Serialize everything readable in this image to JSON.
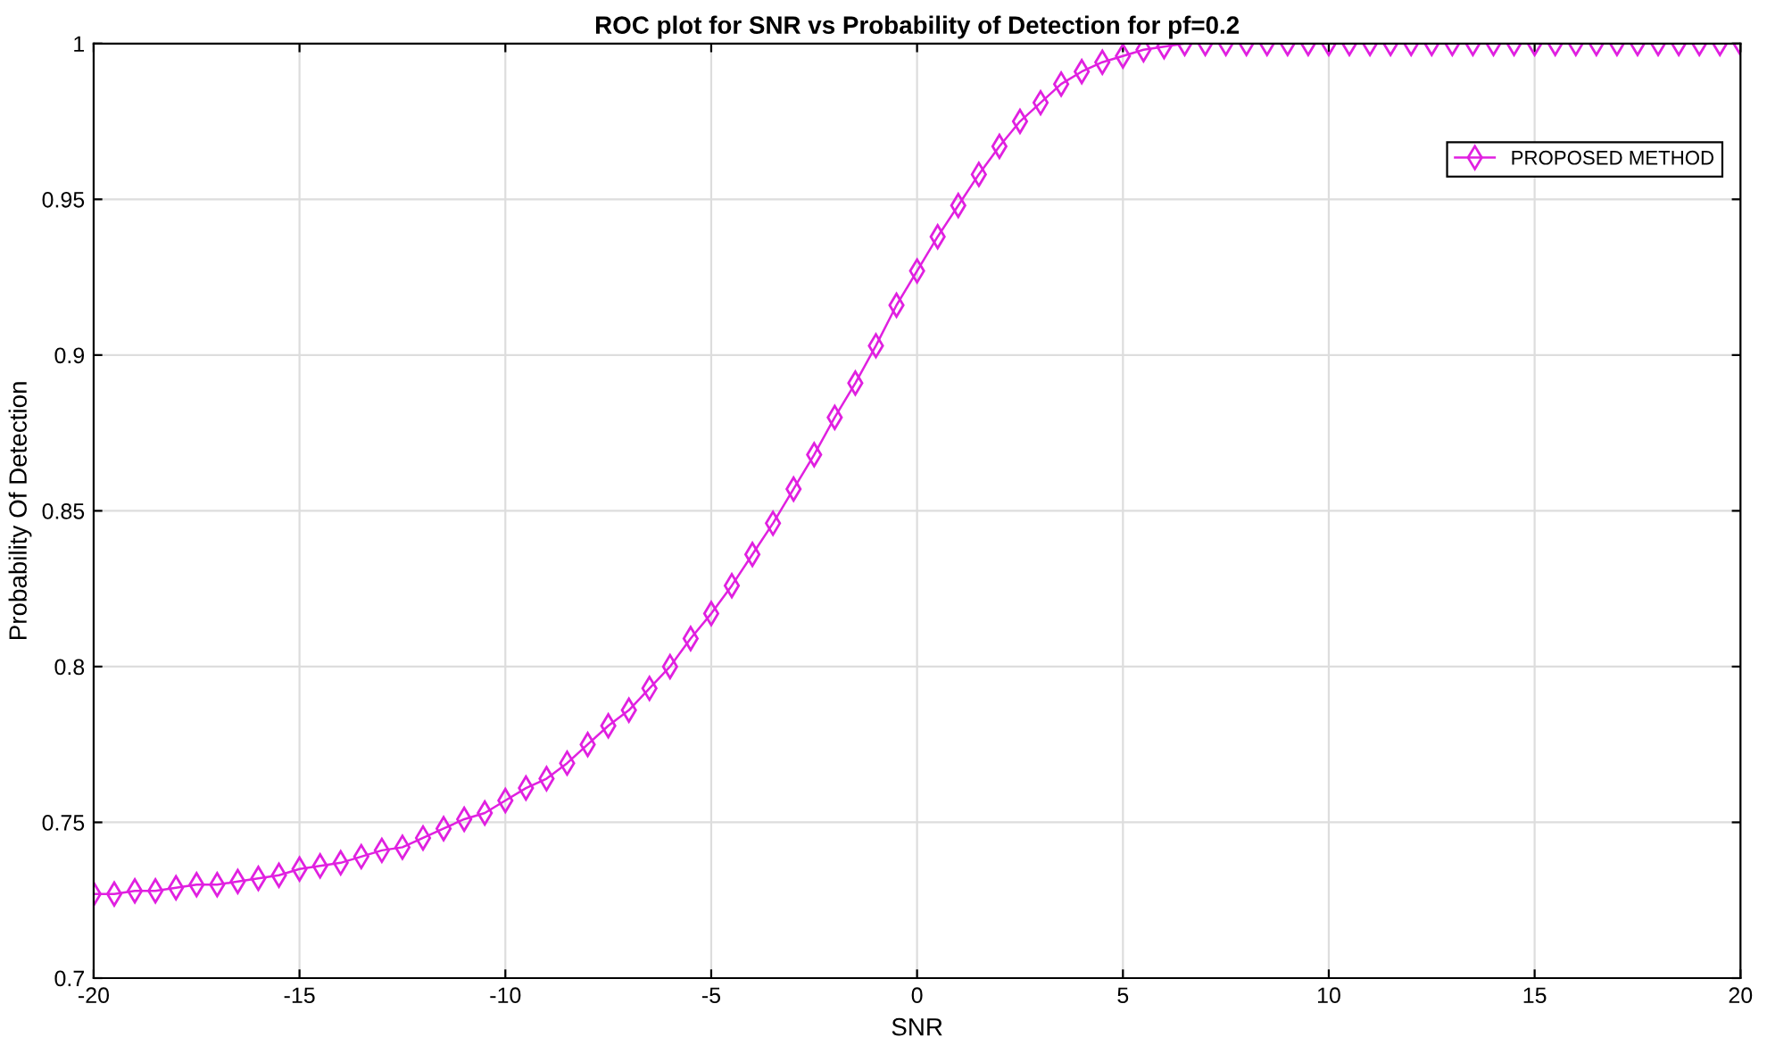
{
  "chart_data": {
    "type": "line",
    "title": "ROC plot for SNR vs Probability of Detection for pf=0.2",
    "xlabel": "SNR",
    "ylabel": "Probability Of Detection",
    "x": [
      -20,
      -19.5,
      -19,
      -18.5,
      -18,
      -17.5,
      -17,
      -16.5,
      -16,
      -15.5,
      -15,
      -14.5,
      -14,
      -13.5,
      -13,
      -12.5,
      -12,
      -11.5,
      -11,
      -10.5,
      -10,
      -9.5,
      -9,
      -8.5,
      -8,
      -7.5,
      -7,
      -6.5,
      -6,
      -5.5,
      -5,
      -4.5,
      -4,
      -3.5,
      -3,
      -2.5,
      -2,
      -1.5,
      -1,
      -0.5,
      0,
      0.5,
      1,
      1.5,
      2,
      2.5,
      3,
      3.5,
      4,
      4.5,
      5,
      5.5,
      6,
      6.5,
      7,
      7.5,
      8,
      8.5,
      9,
      9.5,
      10,
      10.5,
      11,
      11.5,
      12,
      12.5,
      13,
      13.5,
      14,
      14.5,
      15,
      15.5,
      16,
      16.5,
      17,
      17.5,
      18,
      18.5,
      19,
      19.5,
      20
    ],
    "series": [
      {
        "name": "PROPOSED METHOD",
        "color": "#e020e0",
        "values": [
          0.727,
          0.727,
          0.728,
          0.728,
          0.729,
          0.73,
          0.73,
          0.731,
          0.732,
          0.733,
          0.735,
          0.736,
          0.737,
          0.739,
          0.741,
          0.742,
          0.745,
          0.748,
          0.751,
          0.753,
          0.757,
          0.761,
          0.764,
          0.769,
          0.775,
          0.781,
          0.786,
          0.793,
          0.8,
          0.809,
          0.817,
          0.826,
          0.836,
          0.846,
          0.857,
          0.868,
          0.88,
          0.891,
          0.903,
          0.916,
          0.927,
          0.938,
          0.948,
          0.958,
          0.967,
          0.975,
          0.981,
          0.987,
          0.991,
          0.994,
          0.996,
          0.998,
          0.999,
          1.0,
          1.0,
          1.0,
          1.0,
          1.0,
          1.0,
          1.0,
          1.0,
          1.0,
          1.0,
          1.0,
          1.0,
          1.0,
          1.0,
          1.0,
          1.0,
          1.0,
          1.0,
          1.0,
          1.0,
          1.0,
          1.0,
          1.0,
          1.0,
          1.0,
          1.0,
          1.0,
          1.0
        ]
      }
    ],
    "xlim": [
      -20,
      20
    ],
    "xticks": [
      -20,
      -15,
      -10,
      -5,
      0,
      5,
      10,
      15,
      20
    ],
    "ylim": [
      0.7,
      1
    ],
    "yticks": [
      0.7,
      0.75,
      0.8,
      0.85,
      0.9,
      0.95,
      1
    ],
    "grid": true,
    "legend": "top right",
    "marker": "diamond",
    "line_style": "solid"
  }
}
